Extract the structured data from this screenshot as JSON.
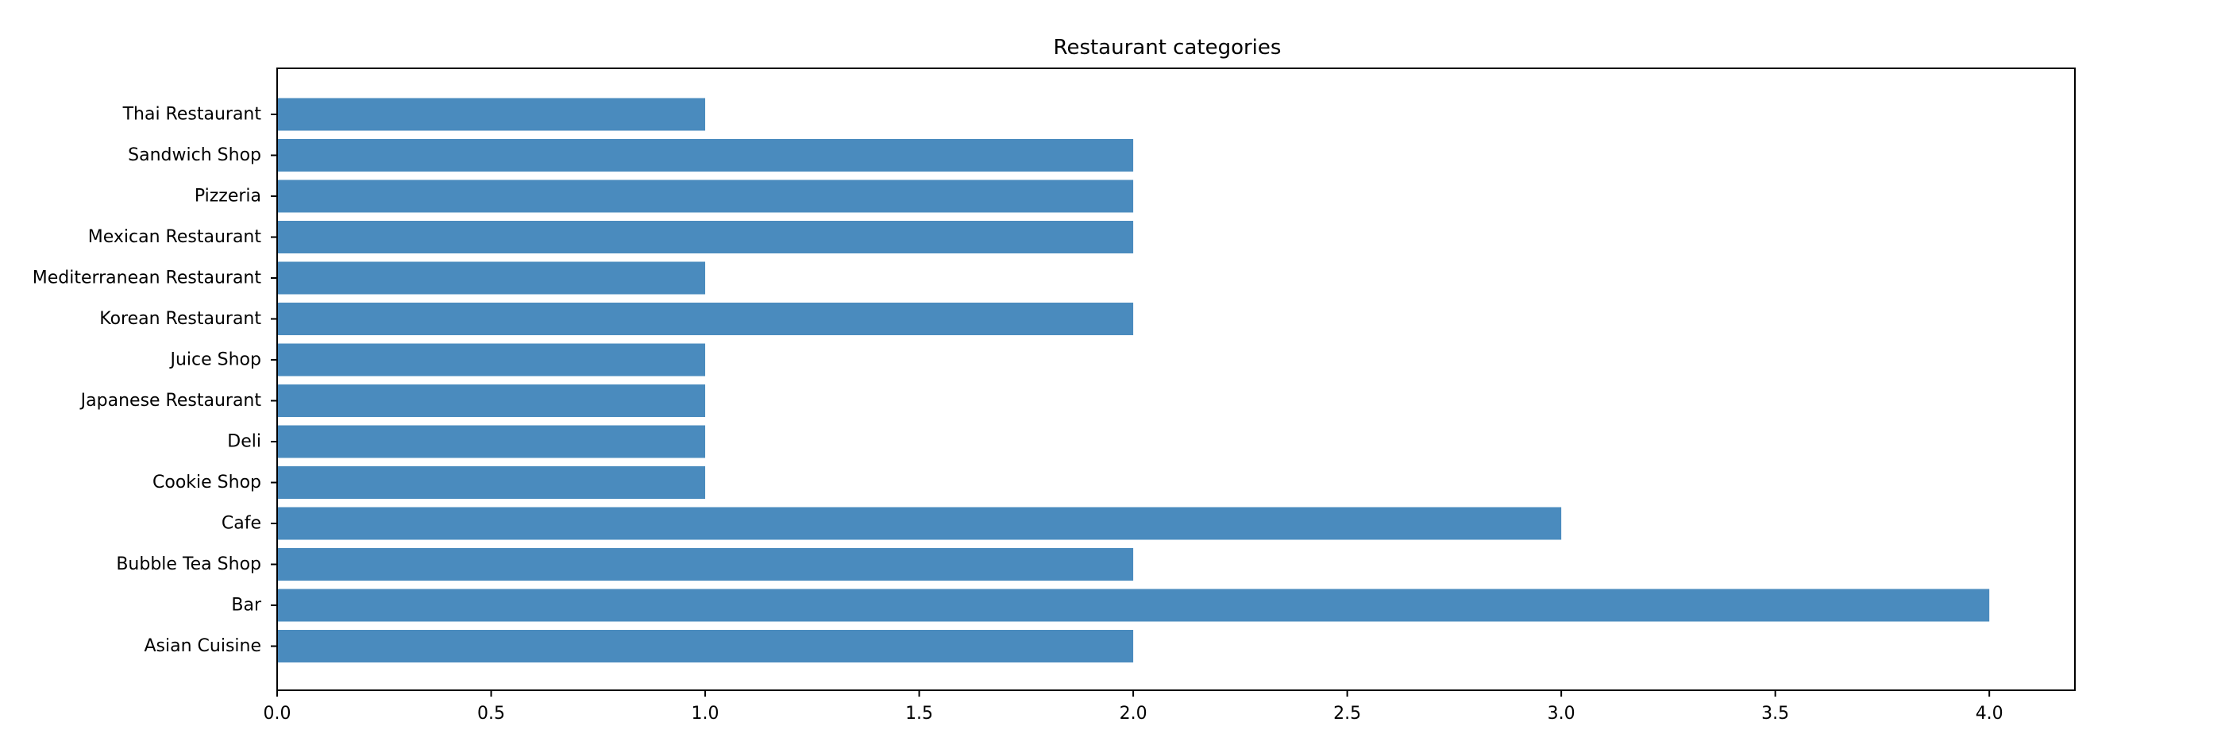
{
  "chart_data": {
    "type": "bar",
    "orientation": "horizontal",
    "title": "Restaurant categories",
    "xlabel": "",
    "ylabel": "",
    "categories": [
      "Asian Cuisine ",
      "Bar",
      "Bubble Tea Shop",
      "Cafe",
      "Cookie Shop",
      "Deli",
      "Japanese Restaurant",
      "Juice Shop",
      "Korean Restaurant",
      "Mediterranean Restaurant",
      "Mexican Restaurant",
      "Pizzeria",
      "Sandwich Shop",
      "Thai Restaurant"
    ],
    "values": [
      2,
      4,
      2,
      3,
      1,
      1,
      1,
      1,
      2,
      1,
      2,
      2,
      2,
      1
    ],
    "xlim": [
      0,
      4.2
    ],
    "xticks": [
      "0.0",
      "0.5",
      "1.0",
      "1.5",
      "2.0",
      "2.5",
      "3.0",
      "3.5",
      "4.0"
    ],
    "grid": false,
    "colors": {
      "bar": "#4a8bbe",
      "axes": "#000000",
      "background": "#ffffff"
    }
  }
}
